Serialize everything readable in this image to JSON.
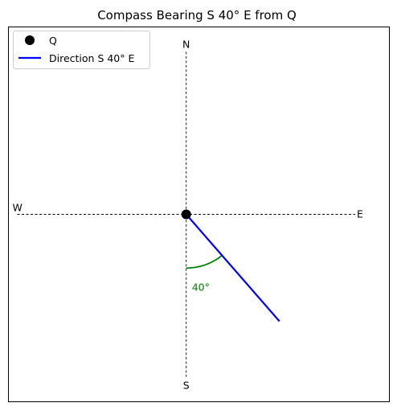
{
  "chart_data": {
    "type": "line",
    "title": "Compass Bearing S 40° E from Q",
    "xlabel": "",
    "ylabel": "",
    "xlim": [
      -1.05,
      1.2
    ],
    "ylim": [
      -1.15,
      1.15
    ],
    "grid": false,
    "legend_position": "top-left",
    "compass_axes": {
      "north_label": "N",
      "south_label": "S",
      "east_label": "E",
      "west_label": "W",
      "extent": 1.0,
      "style": "dashed",
      "color": "#000000"
    },
    "point": {
      "name": "Q",
      "x": 0,
      "y": 0,
      "color": "#000000"
    },
    "series": [
      {
        "name": "Direction S 40° E",
        "color": "#0000ff",
        "x": [
          0,
          0.5518
        ],
        "y": [
          0,
          -0.6577
        ]
      }
    ],
    "angle_arc": {
      "label": "40°",
      "radius": 0.33,
      "from_bearing_deg": 180,
      "to_bearing_deg": 140,
      "color": "#008000"
    },
    "legend": [
      {
        "label": "Q",
        "marker": "circle",
        "color": "#000000"
      },
      {
        "label": "Direction S 40° E",
        "marker": "line",
        "color": "#0000ff"
      }
    ]
  }
}
